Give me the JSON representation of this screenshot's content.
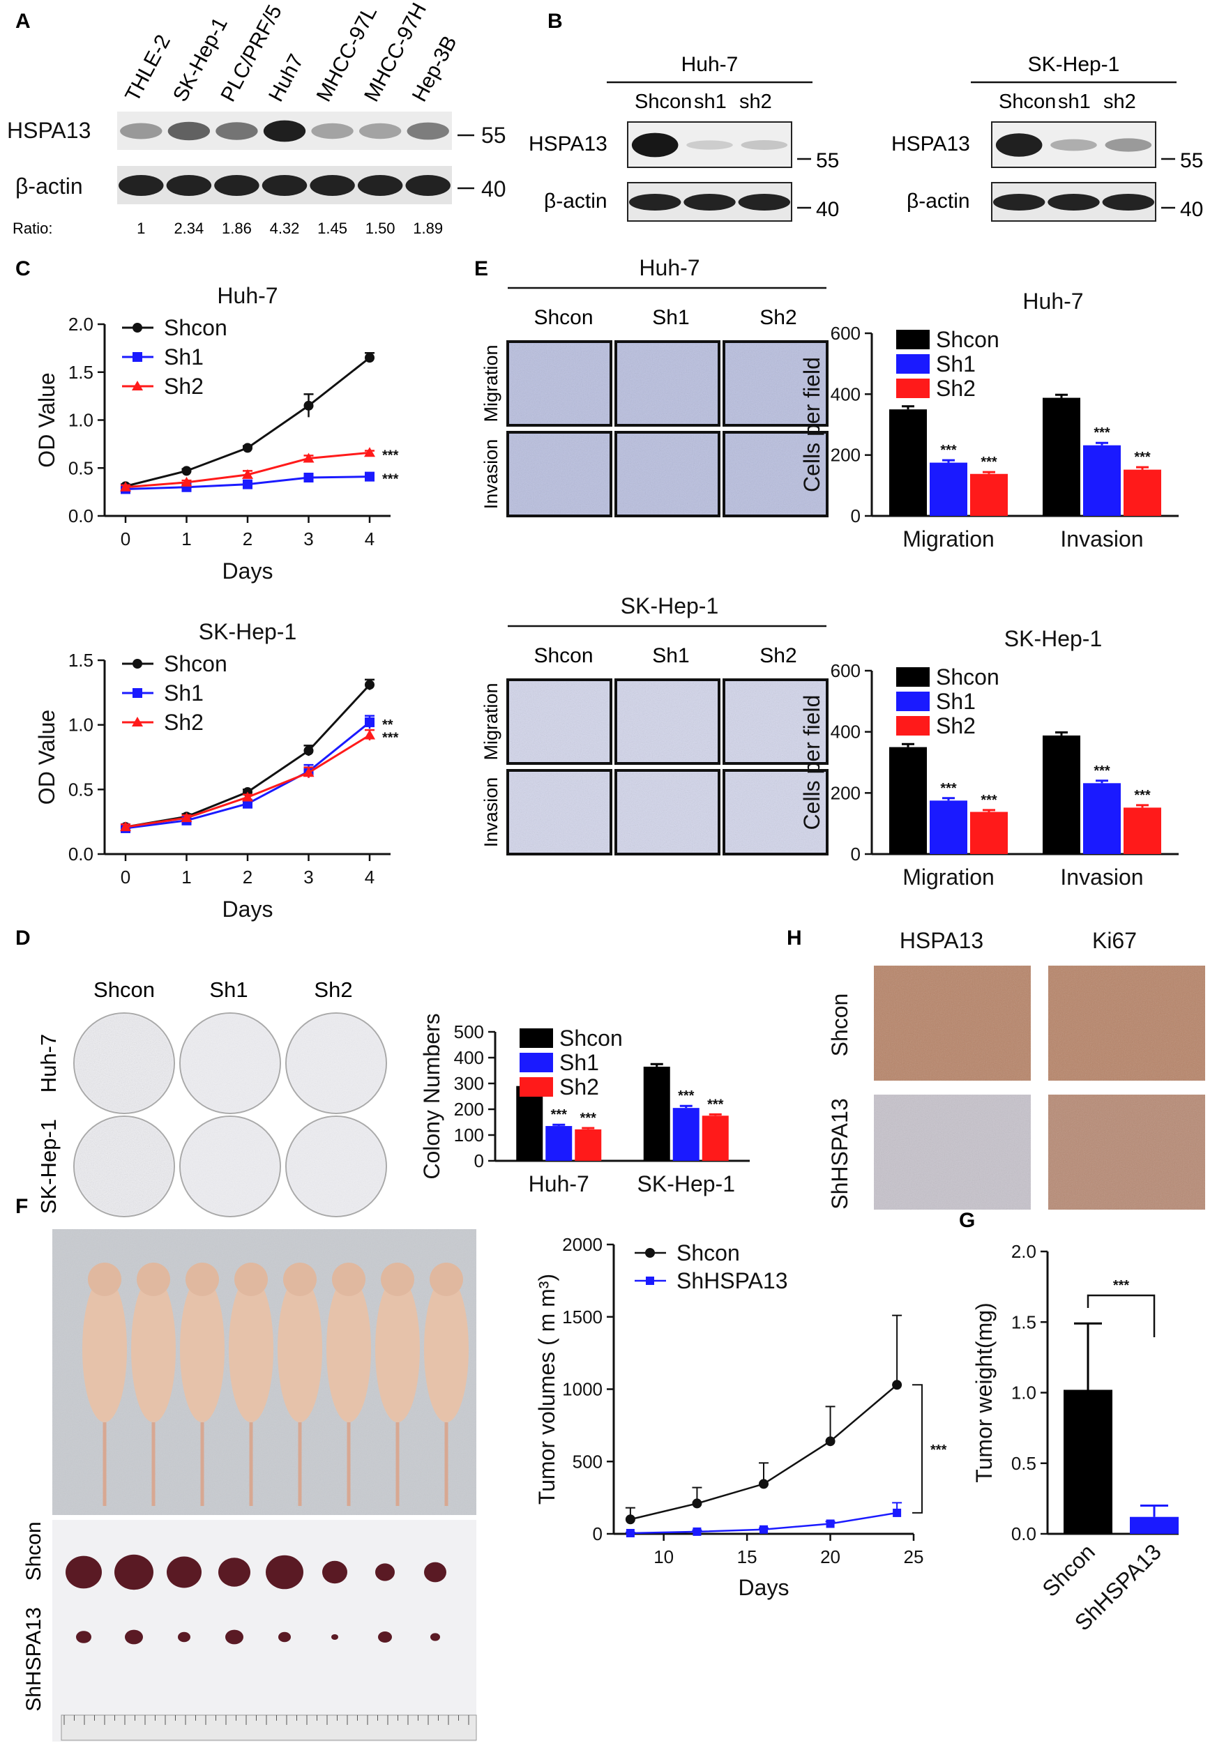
{
  "panels": {
    "A": {
      "label": "A",
      "lanes": [
        "THLE-2",
        "SK-Hep-1",
        "PLC/PRF/5",
        "Huh7",
        "MHCC-97L",
        "MHCC-97H",
        "Hep-3B"
      ],
      "rows": [
        "HSPA13",
        "β-actin"
      ],
      "markers": [
        "55",
        "40"
      ],
      "ratio_label": "Ratio:",
      "ratios": [
        "1",
        "2.34",
        "1.86",
        "4.32",
        "1.45",
        "1.50",
        "1.89"
      ],
      "intensity": [
        0.25,
        0.55,
        0.45,
        0.9,
        0.2,
        0.2,
        0.4
      ]
    },
    "B": {
      "label": "B",
      "blots": [
        {
          "title": "Huh-7",
          "lanes": [
            "Shcon",
            "sh1",
            "sh2"
          ],
          "intensity": [
            0.95,
            0.05,
            0.08
          ]
        },
        {
          "title": "SK-Hep-1",
          "lanes": [
            "Shcon",
            "sh1",
            "sh2"
          ],
          "intensity": [
            0.9,
            0.2,
            0.3
          ]
        }
      ],
      "rows": [
        "HSPA13",
        "β-actin"
      ],
      "markers": [
        "55",
        "40"
      ]
    },
    "C": {
      "label": "C",
      "days_label": "Days",
      "yl1": "OD",
      "yl2": "Value"
    },
    "D": {
      "label": "D",
      "cols": [
        "Shcon",
        "Sh1",
        "Sh2"
      ],
      "rows": [
        "Huh-7",
        "SK-Hep-1"
      ]
    },
    "E": {
      "label": "E",
      "groups": [
        {
          "title": "Huh-7",
          "cols": [
            "Shcon",
            "Sh1",
            "Sh2"
          ],
          "rows": [
            "Migration",
            "Invasion"
          ]
        },
        {
          "title": "SK-Hep-1",
          "cols": [
            "Shcon",
            "Sh1",
            "Sh2"
          ],
          "rows": [
            "Migration",
            "Invasion"
          ]
        }
      ]
    },
    "F": {
      "label": "F",
      "mouse_rows": [
        "Shcon",
        "ShHSPA13"
      ]
    },
    "G": {
      "label": "G"
    },
    "H": {
      "label": "H",
      "cols": [
        "HSPA13",
        "Ki67"
      ],
      "rows": [
        "Shcon",
        "ShHSPA13"
      ]
    }
  },
  "chart_data": [
    {
      "id": "C1",
      "type": "line",
      "title": "Huh-7",
      "xlabel": "Days",
      "ylabel": "OD  Value",
      "x": [
        0,
        1,
        2,
        3,
        4
      ],
      "xlim": [
        0,
        4
      ],
      "ylim": [
        0,
        2.0
      ],
      "yticks": [
        "0.0",
        "0.5",
        "1.0",
        "1.5",
        "2.0"
      ],
      "series": [
        {
          "name": "Shcon",
          "color": "#111111",
          "marker": "circle",
          "values": [
            0.31,
            0.47,
            0.71,
            1.15,
            1.65
          ],
          "err": [
            0.02,
            0.02,
            0.02,
            0.12,
            0.05
          ],
          "sig": ""
        },
        {
          "name": "Sh1",
          "color": "#1a1aff",
          "marker": "square",
          "values": [
            0.28,
            0.3,
            0.33,
            0.4,
            0.41
          ],
          "err": [
            0.02,
            0.02,
            0.02,
            0.02,
            0.02
          ],
          "sig": "***"
        },
        {
          "name": "Sh2",
          "color": "#ff1a1a",
          "marker": "triangle",
          "values": [
            0.3,
            0.35,
            0.43,
            0.6,
            0.66
          ],
          "err": [
            0.02,
            0.02,
            0.04,
            0.03,
            0.02
          ],
          "sig": "***"
        }
      ]
    },
    {
      "id": "C2",
      "type": "line",
      "title": "SK-Hep-1",
      "xlabel": "Days",
      "ylabel": "OD  Value",
      "x": [
        0,
        1,
        2,
        3,
        4
      ],
      "xlim": [
        0,
        4
      ],
      "ylim": [
        0,
        1.5
      ],
      "yticks": [
        "0.0",
        "0.5",
        "1.0",
        "1.5"
      ],
      "series": [
        {
          "name": "Shcon",
          "color": "#111111",
          "marker": "circle",
          "values": [
            0.21,
            0.29,
            0.48,
            0.8,
            1.31
          ],
          "err": [
            0.02,
            0.02,
            0.02,
            0.04,
            0.04
          ],
          "sig": ""
        },
        {
          "name": "Sh1",
          "color": "#1a1aff",
          "marker": "square",
          "values": [
            0.2,
            0.26,
            0.39,
            0.64,
            1.02
          ],
          "err": [
            0.02,
            0.02,
            0.02,
            0.05,
            0.05
          ],
          "sig": "**"
        },
        {
          "name": "Sh2",
          "color": "#ff1a1a",
          "marker": "triangle",
          "values": [
            0.21,
            0.28,
            0.44,
            0.63,
            0.92
          ],
          "err": [
            0.02,
            0.02,
            0.02,
            0.04,
            0.04
          ],
          "sig": "***"
        }
      ]
    },
    {
      "id": "D",
      "type": "bar",
      "title": "",
      "ylabel": "Colony  Numbers",
      "categories": [
        "Huh-7",
        "SK-Hep-1"
      ],
      "ylim": [
        0,
        500
      ],
      "yticks": [
        "0",
        "100",
        "200",
        "300",
        "400",
        "500"
      ],
      "series": [
        {
          "name": "Shcon",
          "color": "#000000",
          "values": [
            290,
            365
          ],
          "err": [
            12,
            10
          ],
          "sig": [
            "",
            ""
          ]
        },
        {
          "name": "Sh1",
          "color": "#1a1aff",
          "values": [
            135,
            205
          ],
          "err": [
            5,
            8
          ],
          "sig": [
            "***",
            "***"
          ]
        },
        {
          "name": "Sh2",
          "color": "#ff1a1a",
          "values": [
            122,
            175
          ],
          "err": [
            5,
            5
          ],
          "sig": [
            "***",
            "***"
          ]
        }
      ]
    },
    {
      "id": "E1",
      "type": "bar",
      "title": "Huh-7",
      "ylabel": "Cells  per  field",
      "categories": [
        "Migration",
        "Invasion"
      ],
      "ylim": [
        0,
        600
      ],
      "yticks": [
        "0",
        "200",
        "400",
        "600"
      ],
      "series": [
        {
          "name": "Shcon",
          "color": "#000000",
          "values": [
            350,
            388
          ],
          "err": [
            10,
            10
          ],
          "sig": [
            "",
            ""
          ]
        },
        {
          "name": "Sh1",
          "color": "#1a1aff",
          "values": [
            175,
            232
          ],
          "err": [
            8,
            8
          ],
          "sig": [
            "***",
            "***"
          ]
        },
        {
          "name": "Sh2",
          "color": "#ff1a1a",
          "values": [
            138,
            152
          ],
          "err": [
            6,
            8
          ],
          "sig": [
            "***",
            "***"
          ]
        }
      ]
    },
    {
      "id": "E2",
      "type": "bar",
      "title": "SK-Hep-1",
      "ylabel": "Cells  per  field",
      "categories": [
        "Migration",
        "Invasion"
      ],
      "ylim": [
        0,
        600
      ],
      "yticks": [
        "0",
        "200",
        "400",
        "600"
      ],
      "series": [
        {
          "name": "Shcon",
          "color": "#000000",
          "values": [
            350,
            388
          ],
          "err": [
            10,
            10
          ],
          "sig": [
            "",
            ""
          ]
        },
        {
          "name": "Sh1",
          "color": "#1a1aff",
          "values": [
            175,
            232
          ],
          "err": [
            8,
            8
          ],
          "sig": [
            "***",
            "***"
          ]
        },
        {
          "name": "Sh2",
          "color": "#ff1a1a",
          "values": [
            138,
            152
          ],
          "err": [
            6,
            8
          ],
          "sig": [
            "***",
            "***"
          ]
        }
      ]
    },
    {
      "id": "F",
      "type": "line",
      "title": "",
      "xlabel": "Days",
      "ylabel": "Tumor volumes ( m m³)",
      "x": [
        8,
        12,
        16,
        20,
        24
      ],
      "xlim": [
        7,
        25
      ],
      "xticks": [
        "10",
        "15",
        "20",
        "25"
      ],
      "ylim": [
        0,
        2000
      ],
      "yticks": [
        "0",
        "500",
        "1000",
        "1500",
        "2000"
      ],
      "series": [
        {
          "name": "Shcon",
          "color": "#111111",
          "marker": "circle",
          "values": [
            100,
            210,
            345,
            640,
            1030
          ],
          "err": [
            80,
            110,
            145,
            240,
            480
          ]
        },
        {
          "name": "ShHSPA13",
          "color": "#1a1aff",
          "marker": "square",
          "values": [
            5,
            15,
            30,
            70,
            145
          ],
          "err": [
            5,
            10,
            10,
            15,
            70
          ]
        }
      ],
      "sig": "***"
    },
    {
      "id": "G",
      "type": "bar",
      "title": "",
      "ylabel": "Tumor weight(mg)",
      "categories": [
        "Shcon",
        "ShHSPA13"
      ],
      "ylim": [
        0,
        2.0
      ],
      "yticks": [
        "0.0",
        "0.5",
        "1.0",
        "1.5",
        "2.0"
      ],
      "series": [
        {
          "name": "",
          "colors": [
            "#000000",
            "#1a1aff"
          ],
          "values": [
            1.02,
            0.12
          ],
          "err": [
            0.47,
            0.08
          ]
        }
      ],
      "sig": "***"
    }
  ]
}
